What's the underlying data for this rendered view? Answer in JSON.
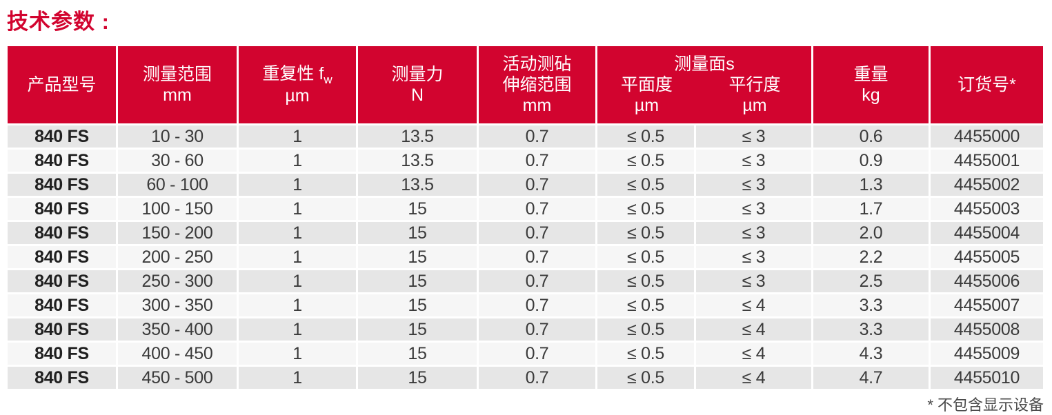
{
  "page_title": "技术参数 :",
  "colors": {
    "brand_red": "#d2042f",
    "row_gray": "#e6e6e6",
    "row_light": "#f6f6f6"
  },
  "table": {
    "header": {
      "product_model": "产品型号",
      "range_l1": "测量范围",
      "range_l2": "mm",
      "repeat_l1": "重复性 f",
      "repeat_sub": "w",
      "repeat_l2": "µm",
      "force_l1": "测量力",
      "force_l2": "N",
      "anvil_l1": "活动测砧",
      "anvil_l2": "伸缩范围",
      "anvil_l3": "mm",
      "faces_title": "测量面s",
      "flatness_label": "平面度",
      "flatness_unit": "µm",
      "parallelism_label": "平行度",
      "parallelism_unit": "µm",
      "weight_l1": "重量",
      "weight_l2": "kg",
      "order_label": "订货号*"
    },
    "rows": [
      {
        "model": "840 FS",
        "range": "10 - 30",
        "repeat": "1",
        "force": "13.5",
        "anvil": "0.7",
        "flatness": "≤ 0.5",
        "parallelism": "≤ 3",
        "weight": "0.6",
        "order": "4455000"
      },
      {
        "model": "840 FS",
        "range": "30 - 60",
        "repeat": "1",
        "force": "13.5",
        "anvil": "0.7",
        "flatness": "≤ 0.5",
        "parallelism": "≤ 3",
        "weight": "0.9",
        "order": "4455001"
      },
      {
        "model": "840 FS",
        "range": "60 - 100",
        "repeat": "1",
        "force": "13.5",
        "anvil": "0.7",
        "flatness": "≤ 0.5",
        "parallelism": "≤ 3",
        "weight": "1.3",
        "order": "4455002"
      },
      {
        "model": "840 FS",
        "range": "100 - 150",
        "repeat": "1",
        "force": "15",
        "anvil": "0.7",
        "flatness": "≤ 0.5",
        "parallelism": "≤ 3",
        "weight": "1.7",
        "order": "4455003"
      },
      {
        "model": "840 FS",
        "range": "150 - 200",
        "repeat": "1",
        "force": "15",
        "anvil": "0.7",
        "flatness": "≤ 0.5",
        "parallelism": "≤ 3",
        "weight": "2.0",
        "order": "4455004"
      },
      {
        "model": "840 FS",
        "range": "200 - 250",
        "repeat": "1",
        "force": "15",
        "anvil": "0.7",
        "flatness": "≤ 0.5",
        "parallelism": "≤ 3",
        "weight": "2.2",
        "order": "4455005"
      },
      {
        "model": "840 FS",
        "range": "250 - 300",
        "repeat": "1",
        "force": "15",
        "anvil": "0.7",
        "flatness": "≤ 0.5",
        "parallelism": "≤ 3",
        "weight": "2.5",
        "order": "4455006"
      },
      {
        "model": "840 FS",
        "range": "300 - 350",
        "repeat": "1",
        "force": "15",
        "anvil": "0.7",
        "flatness": "≤ 0.5",
        "parallelism": "≤ 4",
        "weight": "3.3",
        "order": "4455007"
      },
      {
        "model": "840 FS",
        "range": "350 - 400",
        "repeat": "1",
        "force": "15",
        "anvil": "0.7",
        "flatness": "≤ 0.5",
        "parallelism": "≤ 4",
        "weight": "3.3",
        "order": "4455008"
      },
      {
        "model": "840 FS",
        "range": "400 - 450",
        "repeat": "1",
        "force": "15",
        "anvil": "0.7",
        "flatness": "≤ 0.5",
        "parallelism": "≤ 4",
        "weight": "4.3",
        "order": "4455009"
      },
      {
        "model": "840 FS",
        "range": "450 - 500",
        "repeat": "1",
        "force": "15",
        "anvil": "0.7",
        "flatness": "≤ 0.5",
        "parallelism": "≤ 4",
        "weight": "4.7",
        "order": "4455010"
      }
    ]
  },
  "footnote": "* 不包含显示设备"
}
